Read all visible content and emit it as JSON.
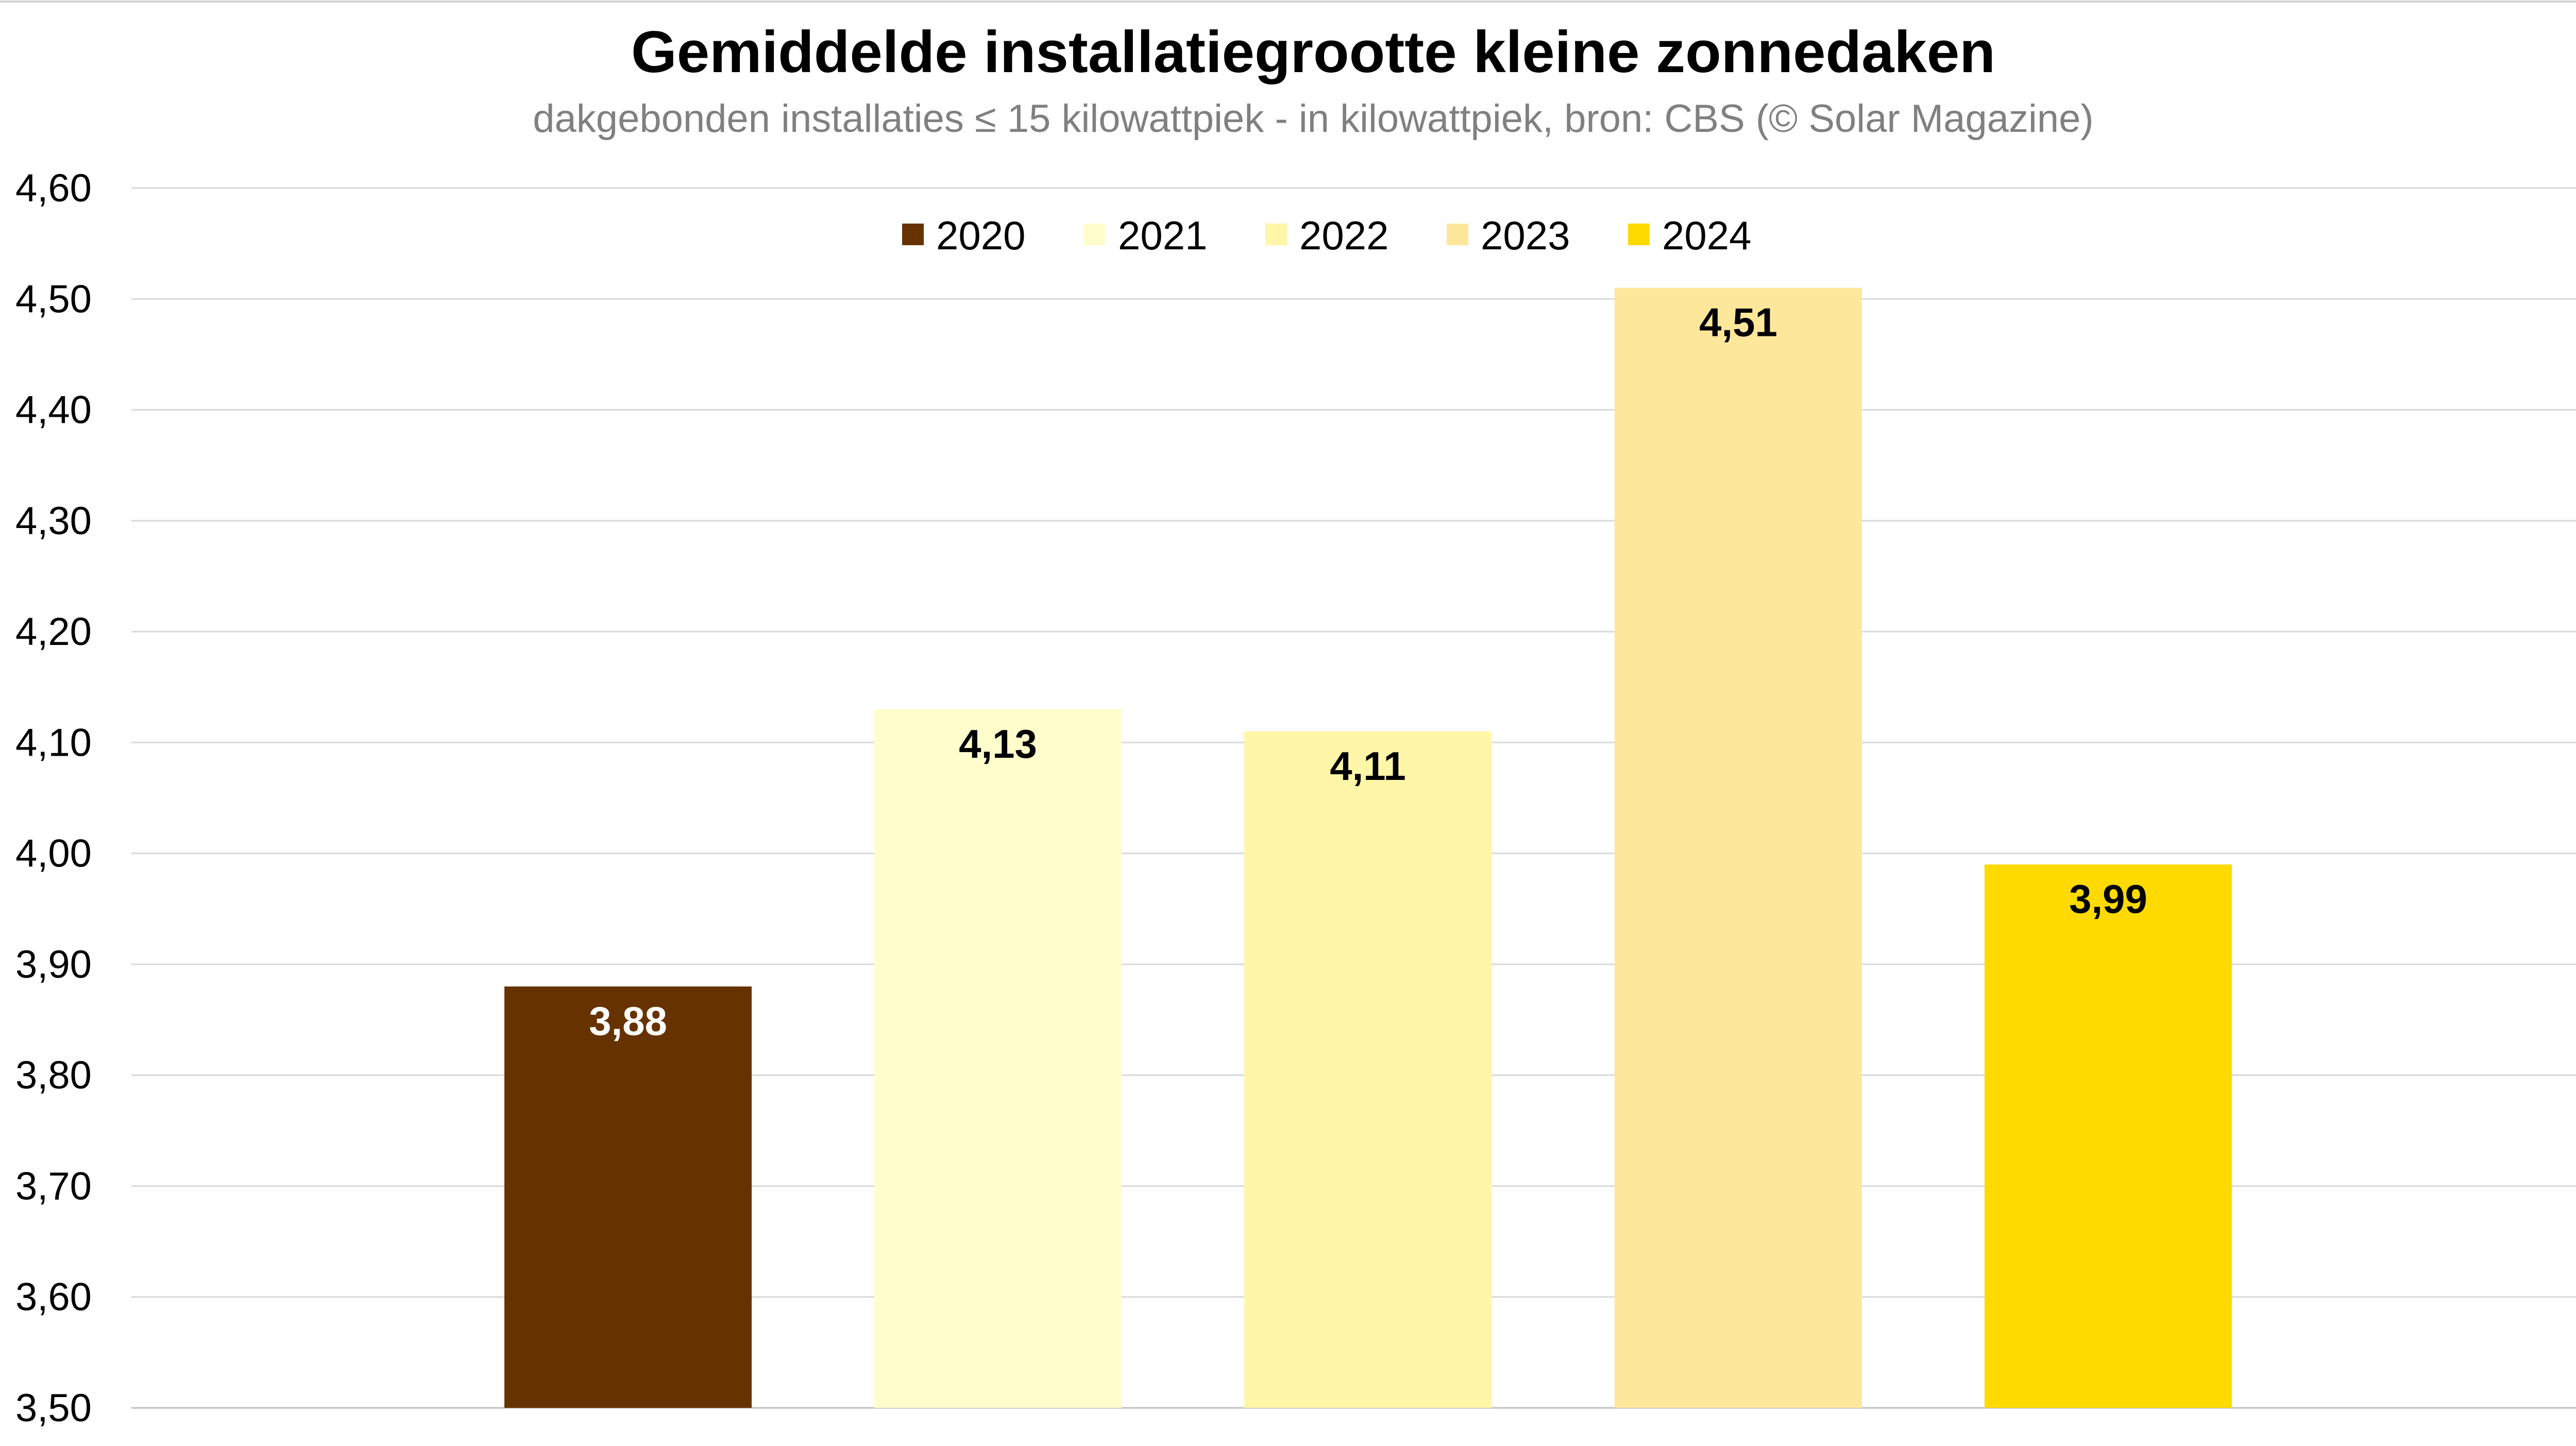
{
  "chart_data": {
    "type": "bar",
    "title": "Gemiddelde installatiegrootte kleine zonnedaken",
    "subtitle": "dakgebonden installaties ≤ 15 kilowattpiek - in kilowattpiek, bron: CBS (© Solar Magazine)",
    "xlabel": "",
    "ylabel": "",
    "ylim": [
      3.5,
      4.6
    ],
    "yticks": [
      3.5,
      3.6,
      3.7,
      3.8,
      3.9,
      4.0,
      4.1,
      4.2,
      4.3,
      4.4,
      4.5,
      4.6
    ],
    "ytick_labels": [
      "3,50",
      "3,60",
      "3,70",
      "3,80",
      "3,90",
      "4,00",
      "4,10",
      "4,20",
      "4,30",
      "4,40",
      "4,50",
      "4,60"
    ],
    "grid": true,
    "legend_position": "top-center",
    "series": [
      {
        "name": "2020",
        "value": 3.88,
        "label": "3,88",
        "color": "#663300",
        "label_color": "#ffffff"
      },
      {
        "name": "2021",
        "value": 4.13,
        "label": "4,13",
        "color": "#FFFDCC",
        "label_color": "#000000"
      },
      {
        "name": "2022",
        "value": 4.11,
        "label": "4,11",
        "color": "#FFF6A8",
        "label_color": "#000000"
      },
      {
        "name": "2023",
        "value": 4.51,
        "label": "4,51",
        "color": "#FDE79B",
        "label_color": "#000000"
      },
      {
        "name": "2024",
        "value": 3.99,
        "label": "3,99",
        "color": "#FFDA00",
        "label_color": "#000000"
      }
    ]
  }
}
